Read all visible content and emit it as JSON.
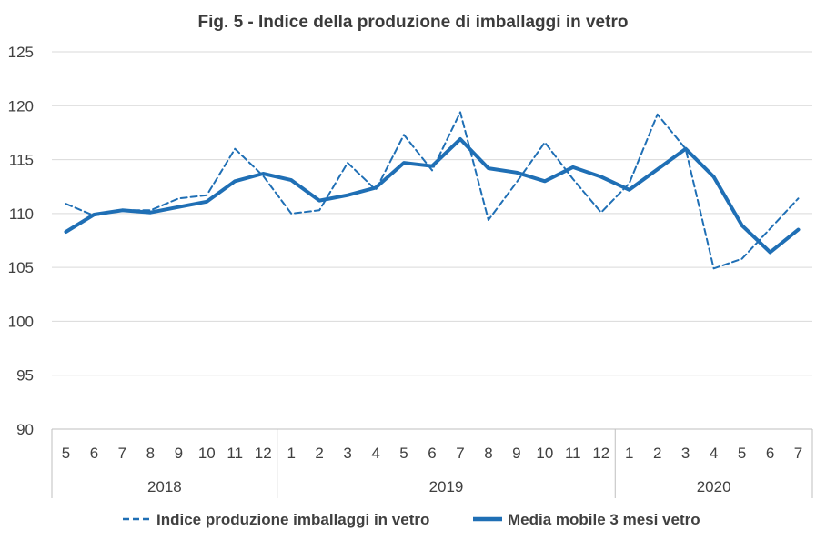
{
  "chart_data": {
    "type": "line",
    "title": "Fig. 5 - Indice della produzione di imballaggi in vetro",
    "xlabel": "",
    "ylabel": "",
    "ylim": [
      90,
      125
    ],
    "yticks": [
      "125",
      "120",
      "115",
      "110",
      "105",
      "100",
      "95",
      "90"
    ],
    "categories": [
      "5",
      "6",
      "7",
      "8",
      "9",
      "10",
      "11",
      "12",
      "1",
      "2",
      "3",
      "4",
      "5",
      "6",
      "7",
      "8",
      "9",
      "10",
      "11",
      "12",
      "1",
      "2",
      "3",
      "4",
      "5",
      "6",
      "7"
    ],
    "years": [
      {
        "label": "2018",
        "count": 8
      },
      {
        "label": "2019",
        "count": 12
      },
      {
        "label": "2020",
        "count": 7
      }
    ],
    "grid": true,
    "legend_position": "bottom",
    "series": [
      {
        "name": "Indice produzione imballaggi in vetro",
        "style": "dashed",
        "color": "#1f6fb5",
        "values": [
          110.9,
          109.8,
          110.3,
          110.3,
          111.4,
          111.7,
          116.0,
          113.5,
          110.0,
          110.3,
          114.7,
          112.2,
          117.3,
          114.0,
          119.4,
          109.4,
          112.9,
          116.6,
          113.2,
          110.1,
          112.8,
          119.2,
          116.0,
          104.9,
          105.8,
          108.6,
          111.4
        ]
      },
      {
        "name": "Media mobile 3 mesi vetro",
        "style": "solid",
        "color": "#1f6fb5",
        "values": [
          108.3,
          109.9,
          110.3,
          110.1,
          110.6,
          111.1,
          113.0,
          113.7,
          113.1,
          111.2,
          111.7,
          112.4,
          114.7,
          114.4,
          116.9,
          114.2,
          113.8,
          113.0,
          114.3,
          113.4,
          112.2,
          114.1,
          116.0,
          113.4,
          108.9,
          106.4,
          108.5
        ]
      }
    ]
  }
}
